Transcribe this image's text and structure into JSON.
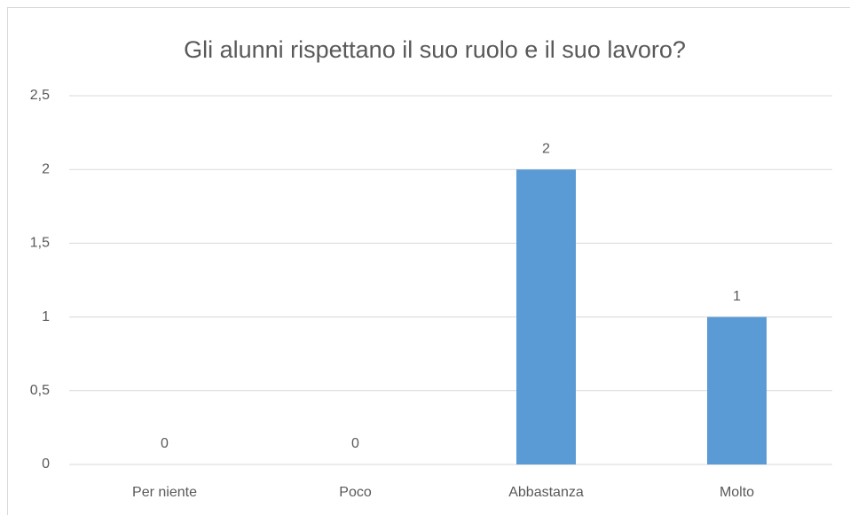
{
  "chart_data": {
    "type": "bar",
    "title": "Gli alunni rispettano il suo ruolo e il suo lavoro?",
    "categories": [
      "Per niente",
      "Poco",
      "Abbastanza",
      "Molto"
    ],
    "values": [
      0,
      0,
      2,
      1
    ],
    "color": "#5b9bd5",
    "ylim": [
      0,
      2.5
    ],
    "yticks": [
      0,
      {
        "value": 0.5,
        "label": "0,5"
      },
      1,
      {
        "value": 1.5,
        "label": "1,5"
      },
      2,
      {
        "value": 2.5,
        "label": "2,5"
      }
    ],
    "grid": true
  }
}
